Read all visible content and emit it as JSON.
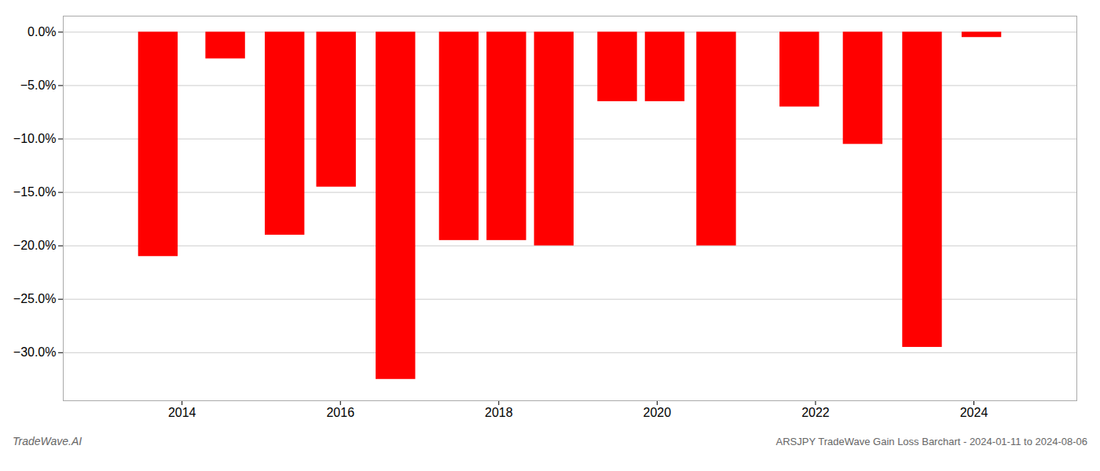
{
  "chart_data": {
    "type": "bar",
    "title": "ARSJPY TradeWave Gain Loss Barchart - 2024-01-11 to 2024-08-06",
    "annotations": [
      "TradeWave.AI"
    ],
    "x": [
      2013.7,
      2014.55,
      2015.3,
      2015.95,
      2016.7,
      2017.5,
      2018.1,
      2018.7,
      2019.5,
      2020.1,
      2020.75,
      2021.8,
      2022.6,
      2023.35,
      2024.1
    ],
    "values": [
      -21.0,
      -2.5,
      -19.0,
      -14.5,
      -32.5,
      -19.5,
      -19.5,
      -20.0,
      -6.5,
      -6.5,
      -20.0,
      -7.0,
      -10.5,
      -29.5,
      -0.5
    ],
    "color": "#ff0000",
    "xlim": [
      2012.5,
      2025.3
    ],
    "xticks": [
      2014,
      2016,
      2018,
      2020,
      2022,
      2024
    ],
    "ylim": [
      -34.5,
      1.5
    ],
    "yticks": [
      {
        "value": 0.0,
        "label": "0.0%"
      },
      {
        "value": -5.0,
        "label": "−5.0%"
      },
      {
        "value": -10.0,
        "label": "−10.0%"
      },
      {
        "value": -15.0,
        "label": "−15.0%"
      },
      {
        "value": -20.0,
        "label": "−20.0%"
      },
      {
        "value": -25.0,
        "label": "−25.0%"
      },
      {
        "value": -30.0,
        "label": "−30.0%"
      }
    ],
    "grid": true
  }
}
